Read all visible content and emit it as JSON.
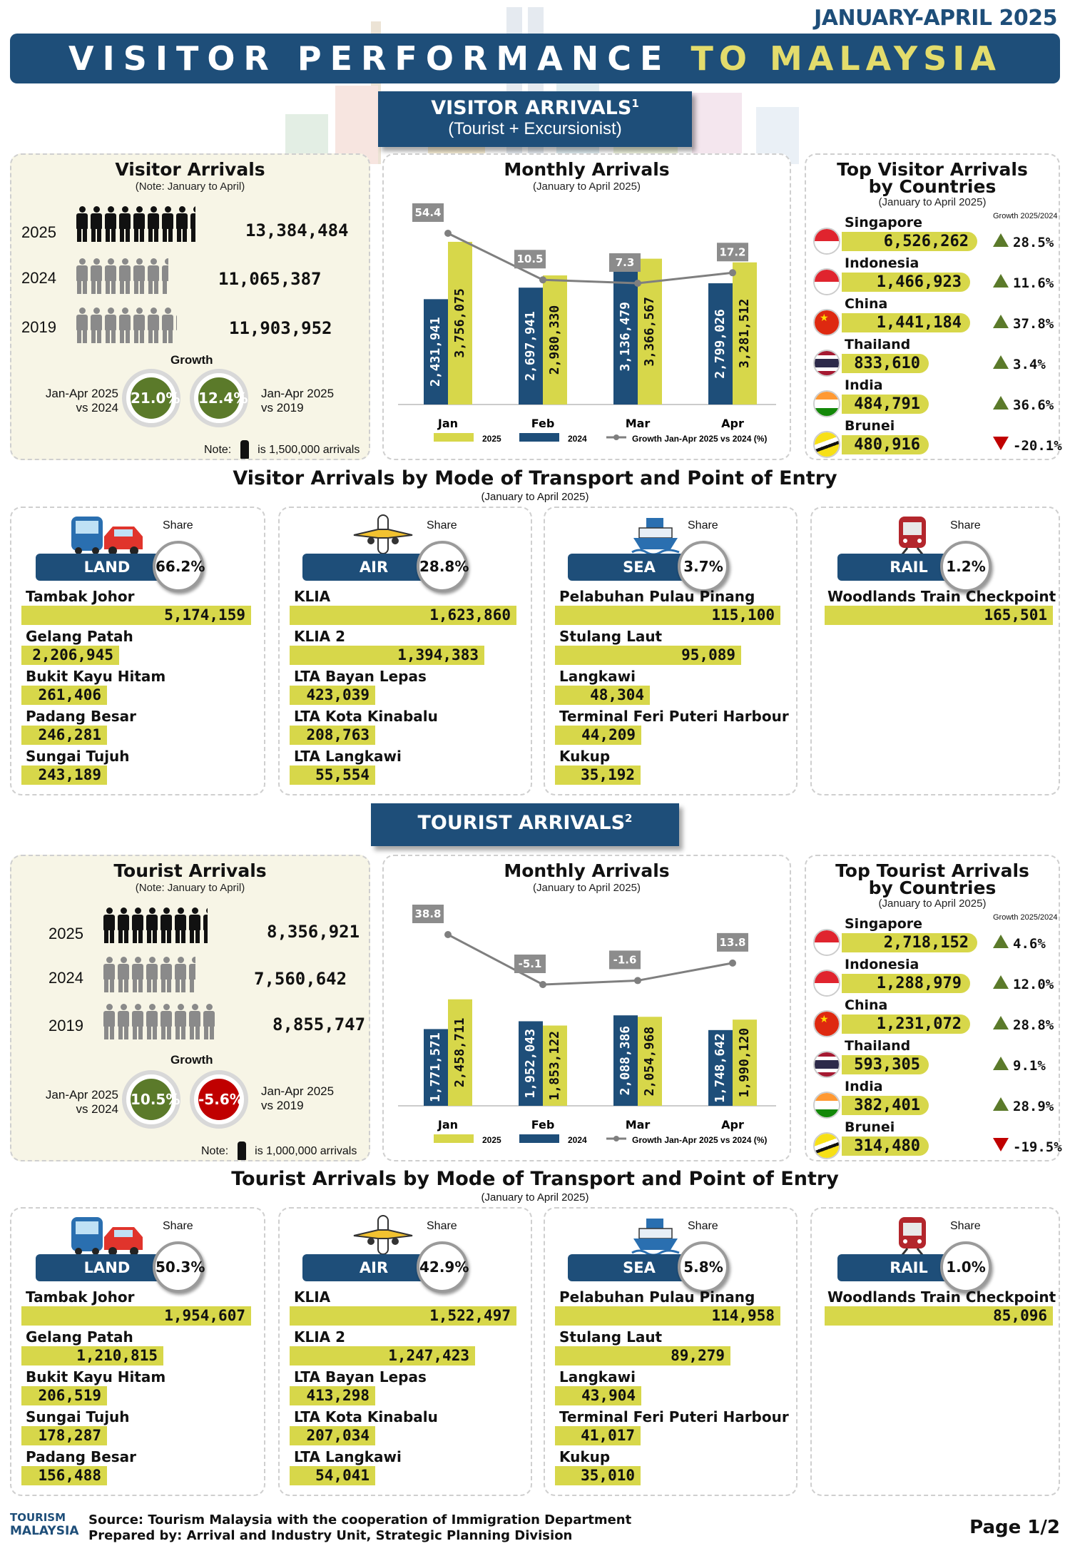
{
  "header": {
    "date_range": "JANUARY-APRIL 2025",
    "title_main": "VISITOR PERFORMANCE",
    "title_accent": "TO MALAYSIA"
  },
  "visitor_section": {
    "heading": "VISITOR ARRIVALS",
    "heading_sup": "1",
    "heading_sub": "(Tourist + Excursionist)"
  },
  "tourist_section": {
    "heading": "TOURIST ARRIVALS",
    "heading_sup": "2"
  },
  "visitor_arrivals": {
    "title": "Visitor Arrivals",
    "note": "(Note: January to April)",
    "rows": [
      {
        "year": "2025",
        "value": "13,384,484"
      },
      {
        "year": "2024",
        "value": "11,065,387"
      },
      {
        "year": "2019",
        "value": "11,903,952"
      }
    ],
    "growth_label": "Growth",
    "cmp_left": "Jan-Apr 2025 vs 2024",
    "cmp_right": "Jan-Apr 2025 vs 2019",
    "growth_left": "21.0%",
    "growth_right": "12.4%",
    "footnote_prefix": "Note:",
    "footnote_suffix": "is 1,500,000 arrivals"
  },
  "tourist_arrivals": {
    "title": "Tourist Arrivals",
    "note": "(Note: January to April)",
    "rows": [
      {
        "year": "2025",
        "value": "8,356,921"
      },
      {
        "year": "2024",
        "value": "7,560,642"
      },
      {
        "year": "2019",
        "value": "8,855,747"
      }
    ],
    "growth_label": "Growth",
    "cmp_left": "Jan-Apr 2025 vs 2024",
    "cmp_right": "Jan-Apr 2025 vs 2019",
    "growth_left": "10.5%",
    "growth_right": "-5.6%",
    "footnote_prefix": "Note:",
    "footnote_suffix": "is 1,000,000 arrivals"
  },
  "chart_data": [
    {
      "type": "bar",
      "title": "Monthly Arrivals",
      "subtitle": "(January to April 2025)",
      "categories": [
        "Jan",
        "Feb",
        "Mar",
        "Apr"
      ],
      "series": [
        {
          "name": "2025",
          "values": [
            3756075,
            2980330,
            3366567,
            3281512
          ],
          "labels": [
            "3,756,075",
            "2,980,330",
            "3,366,567",
            "3,281,512"
          ],
          "color": "#d7d74a"
        },
        {
          "name": "2024",
          "values": [
            2431941,
            2697941,
            3136479,
            2799026
          ],
          "labels": [
            "2,431,941",
            "2,697,941",
            "3,136,479",
            "2,799,026"
          ],
          "color": "#1e4e79"
        },
        {
          "name": "Growth Jan-Apr 2025 vs 2024 (%)",
          "type": "line",
          "values": [
            54.4,
            10.5,
            7.3,
            17.2
          ],
          "color": "#7f7f7f"
        }
      ]
    },
    {
      "type": "bar",
      "title": "Monthly Arrivals",
      "subtitle": "(January to April 2025)",
      "categories": [
        "Jan",
        "Feb",
        "Mar",
        "Apr"
      ],
      "series": [
        {
          "name": "2025",
          "values": [
            2458711,
            1853122,
            2054968,
            1990120
          ],
          "labels": [
            "2,458,711",
            "1,853,122",
            "2,054,968",
            "1,990,120"
          ],
          "color": "#d7d74a"
        },
        {
          "name": "2024",
          "values": [
            1771571,
            1952043,
            2088386,
            1748642
          ],
          "labels": [
            "1,771,571",
            "1,952,043",
            "2,088,386",
            "1,748,642"
          ],
          "color": "#1e4e79"
        },
        {
          "name": "Growth Jan-Apr 2025 vs 2024 (%)",
          "type": "line",
          "values": [
            38.8,
            -5.1,
            -1.6,
            13.8
          ],
          "color": "#7f7f7f"
        }
      ]
    }
  ],
  "top_visitor": {
    "title1": "Top Visitor Arrivals",
    "title2": "by Countries",
    "sub": "(January to April 2025)",
    "growth_hdr": "Growth 2025/2024",
    "countries": [
      {
        "name": "Singapore",
        "value": "6,526,262",
        "growth": "28.5%",
        "dir": "up",
        "flag": "singapore-flag"
      },
      {
        "name": "Indonesia",
        "value": "1,466,923",
        "growth": "11.6%",
        "dir": "up",
        "flag": "indonesia-flag"
      },
      {
        "name": "China",
        "value": "1,441,184",
        "growth": "37.8%",
        "dir": "up",
        "flag": "china-flag"
      },
      {
        "name": "Thailand",
        "value": "833,610",
        "growth": "3.4%",
        "dir": "up",
        "flag": "thailand-flag"
      },
      {
        "name": "India",
        "value": "484,791",
        "growth": "36.6%",
        "dir": "up",
        "flag": "india-flag"
      },
      {
        "name": "Brunei",
        "value": "480,916",
        "growth": "-20.1%",
        "dir": "down",
        "flag": "brunei-flag"
      }
    ]
  },
  "top_tourist": {
    "title1": "Top Tourist Arrivals",
    "title2": "by Countries",
    "sub": "(January to April 2025)",
    "growth_hdr": "Growth 2025/2024",
    "countries": [
      {
        "name": "Singapore",
        "value": "2,718,152",
        "growth": "4.6%",
        "dir": "up",
        "flag": "singapore-flag"
      },
      {
        "name": "Indonesia",
        "value": "1,288,979",
        "growth": "12.0%",
        "dir": "up",
        "flag": "indonesia-flag"
      },
      {
        "name": "China",
        "value": "1,231,072",
        "growth": "28.8%",
        "dir": "up",
        "flag": "china-flag"
      },
      {
        "name": "Thailand",
        "value": "593,305",
        "growth": "9.1%",
        "dir": "up",
        "flag": "thailand-flag"
      },
      {
        "name": "India",
        "value": "382,401",
        "growth": "28.9%",
        "dir": "up",
        "flag": "india-flag"
      },
      {
        "name": "Brunei",
        "value": "314,480",
        "growth": "-19.5%",
        "dir": "down",
        "flag": "brunei-flag"
      }
    ]
  },
  "visitor_transport": {
    "title": "Visitor Arrivals by Mode of Transport and Point of Entry",
    "sub": "(January to April 2025)",
    "modes": [
      {
        "mode": "LAND",
        "share": "66.2%",
        "share_label": "Share",
        "icon": "bus-car-icon",
        "points": [
          {
            "name": "Tambak Johor",
            "value": "5,174,159",
            "fill": 1.0
          },
          {
            "name": "Gelang Patah",
            "value": "2,206,945",
            "fill": 0.426
          },
          {
            "name": "Bukit Kayu Hitam",
            "value": "261,406",
            "fill": 0.05
          },
          {
            "name": "Padang Besar",
            "value": "246,281",
            "fill": 0.048
          },
          {
            "name": "Sungai Tujuh",
            "value": "243,189",
            "fill": 0.047
          }
        ]
      },
      {
        "mode": "AIR",
        "share": "28.8%",
        "share_label": "Share",
        "icon": "airplane-icon",
        "points": [
          {
            "name": "KLIA",
            "value": "1,623,860",
            "fill": 1.0
          },
          {
            "name": "KLIA 2",
            "value": "1,394,383",
            "fill": 0.859
          },
          {
            "name": "LTA Bayan Lepas",
            "value": "423,039",
            "fill": 0.26
          },
          {
            "name": "LTA Kota Kinabalu",
            "value": "208,763",
            "fill": 0.129
          },
          {
            "name": "LTA Langkawi",
            "value": "55,554",
            "fill": 0.034
          }
        ]
      },
      {
        "mode": "SEA",
        "share": "3.7%",
        "share_label": "Share",
        "icon": "ship-icon",
        "points": [
          {
            "name": "Pelabuhan Pulau Pinang",
            "value": "115,100",
            "fill": 1.0
          },
          {
            "name": "Stulang Laut",
            "value": "95,089",
            "fill": 0.826
          },
          {
            "name": "Langkawi",
            "value": "48,304",
            "fill": 0.42
          },
          {
            "name": "Terminal Feri Puteri Harbour",
            "value": "44,209",
            "fill": 0.384
          },
          {
            "name": "Kukup",
            "value": "35,192",
            "fill": 0.306
          }
        ]
      },
      {
        "mode": "RAIL",
        "share": "1.2%",
        "share_label": "Share",
        "icon": "train-icon",
        "points": [
          {
            "name": "Woodlands Train Checkpoint",
            "value": "165,501",
            "fill": 1.0
          }
        ]
      }
    ]
  },
  "tourist_transport": {
    "title": "Tourist Arrivals by Mode of Transport and Point of Entry",
    "sub": "(January to April 2025)",
    "modes": [
      {
        "mode": "LAND",
        "share": "50.3%",
        "share_label": "Share",
        "icon": "bus-car-icon",
        "points": [
          {
            "name": "Tambak Johor",
            "value": "1,954,607",
            "fill": 1.0
          },
          {
            "name": "Gelang Patah",
            "value": "1,210,815",
            "fill": 0.619
          },
          {
            "name": "Bukit Kayu Hitam",
            "value": "206,519",
            "fill": 0.106
          },
          {
            "name": "Sungai Tujuh",
            "value": "178,287",
            "fill": 0.091
          },
          {
            "name": "Padang Besar",
            "value": "156,488",
            "fill": 0.08
          }
        ]
      },
      {
        "mode": "AIR",
        "share": "42.9%",
        "share_label": "Share",
        "icon": "airplane-icon",
        "points": [
          {
            "name": "KLIA",
            "value": "1,522,497",
            "fill": 1.0
          },
          {
            "name": "KLIA 2",
            "value": "1,247,423",
            "fill": 0.819
          },
          {
            "name": "LTA Bayan Lepas",
            "value": "413,298",
            "fill": 0.271
          },
          {
            "name": "LTA Kota Kinabalu",
            "value": "207,034",
            "fill": 0.136
          },
          {
            "name": "LTA Langkawi",
            "value": "54,041",
            "fill": 0.035
          }
        ]
      },
      {
        "mode": "SEA",
        "share": "5.8%",
        "share_label": "Share",
        "icon": "ship-icon",
        "points": [
          {
            "name": "Pelabuhan Pulau Pinang",
            "value": "114,958",
            "fill": 1.0
          },
          {
            "name": "Stulang Laut",
            "value": "89,279",
            "fill": 0.777
          },
          {
            "name": "Langkawi",
            "value": "43,904",
            "fill": 0.382
          },
          {
            "name": "Terminal Feri Puteri Harbour",
            "value": "41,017",
            "fill": 0.357
          },
          {
            "name": "Kukup",
            "value": "35,010",
            "fill": 0.305
          }
        ]
      },
      {
        "mode": "RAIL",
        "share": "1.0%",
        "share_label": "Share",
        "icon": "train-icon",
        "points": [
          {
            "name": "Woodlands Train Checkpoint",
            "value": "85,096",
            "fill": 1.0
          }
        ]
      }
    ]
  },
  "footer": {
    "logo_line1": "TOURISM",
    "logo_line2": "MALAYSIA",
    "source": "Source: Tourism Malaysia with the cooperation of Immigration Department",
    "prepared": "Prepared by: Arrival and Industry Unit, Strategic Planning Division",
    "page": "Page 1/2"
  },
  "colors": {
    "navy": "#1e4e79",
    "yellow": "#d7d74a",
    "green": "#5b7a2a",
    "red": "#c00000",
    "grey": "#7f7f7f"
  }
}
